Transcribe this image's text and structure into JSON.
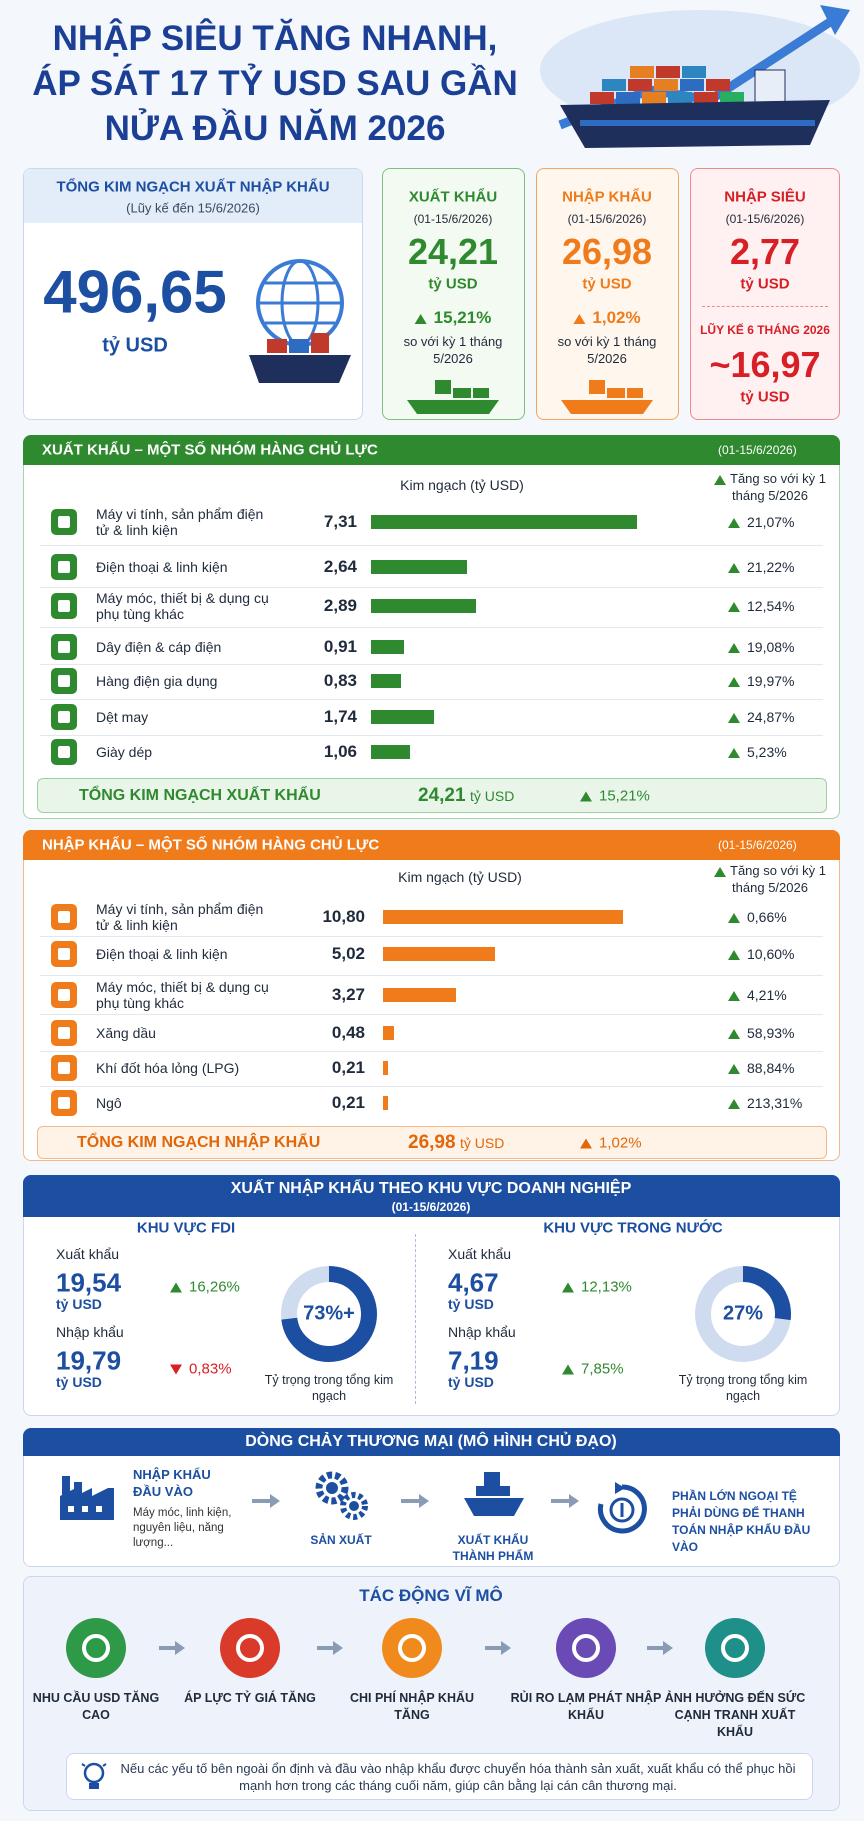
{
  "header": {
    "title_lines": [
      "NHẬP SIÊU TĂNG NHANH,",
      "ÁP SÁT 17 TỶ USD SAU GẦN",
      "NỬA ĐẦU NĂM 2026"
    ]
  },
  "summary": {
    "total": {
      "title": "TỔNG KIM NGẠCH XUẤT NHẬP KHẨU",
      "period": "(Lũy kế đến 15/6/2026)",
      "value": "496,65",
      "unit": "tỷ USD"
    },
    "export": {
      "title": "XUẤT KHẨU",
      "period": "(01-15/6/2026)",
      "value": "24,21",
      "unit": "tỷ USD",
      "change": "15,21%",
      "note": "so với kỳ 1 tháng 5/2026"
    },
    "import": {
      "title": "NHẬP KHẨU",
      "period": "(01-15/6/2026)",
      "value": "26,98",
      "unit": "tỷ USD",
      "change": "1,02%",
      "note": "so với kỳ 1 tháng 5/2026"
    },
    "deficit": {
      "title": "NHẬP SIÊU",
      "period": "(01-15/6/2026)",
      "value": "2,77",
      "unit": "tỷ USD",
      "cumulative_title": "LŨY KẾ 6 THÁNG 2026",
      "cumulative_value": "~16,97",
      "cumulative_unit": "tỷ USD"
    }
  },
  "chart_data": [
    {
      "type": "bar",
      "title": "XUẤT KHẨU – MỘT SỐ NHÓM HÀNG CHỦ LỰC",
      "period": "(01-15/6/2026)",
      "value_header": "Kim ngạch (tỷ USD)",
      "change_header": "Tăng so với kỳ 1 tháng 5/2026",
      "color": "#2f8a2f",
      "categories": [
        "Máy vi tính, sản phẩm điện tử & linh kiện",
        "Điện thoại & linh kiện",
        "Máy móc, thiết bị & dụng cụ phụ tùng khác",
        "Dây điện & cáp điện",
        "Hàng điện gia dụng",
        "Dệt may",
        "Giày dép"
      ],
      "values": [
        7.31,
        2.64,
        2.89,
        0.91,
        0.83,
        1.74,
        1.06
      ],
      "value_labels": [
        "7,31",
        "2,64",
        "2,89",
        "0,91",
        "0,83",
        "1,74",
        "1,06"
      ],
      "changes": [
        "21,07%",
        "21,22%",
        "12,54%",
        "19,08%",
        "19,97%",
        "24,87%",
        "5,23%"
      ],
      "total": {
        "label": "TỔNG KIM NGẠCH XUẤT KHẨU",
        "value": "24,21",
        "unit": "tỷ USD",
        "change": "15,21%"
      }
    },
    {
      "type": "bar",
      "title": "NHẬP KHẨU – MỘT SỐ NHÓM HÀNG CHỦ LỰC",
      "period": "(01-15/6/2026)",
      "value_header": "Kim ngạch (tỷ USD)",
      "change_header": "Tăng so với kỳ 1 tháng 5/2026",
      "color": "#f07b1a",
      "categories": [
        "Máy vi tính, sản phẩm điện tử & linh kiện",
        "Điện thoại & linh kiện",
        "Máy móc, thiết bị & dụng cụ phụ tùng khác",
        "Xăng dầu",
        "Khí đốt hóa lỏng (LPG)",
        "Ngô"
      ],
      "values": [
        10.8,
        5.02,
        3.27,
        0.48,
        0.21,
        0.21
      ],
      "value_labels": [
        "10,80",
        "5,02",
        "3,27",
        "0,48",
        "0,21",
        "0,21"
      ],
      "changes": [
        "0,66%",
        "10,60%",
        "4,21%",
        "58,93%",
        "88,84%",
        "213,31%"
      ],
      "total": {
        "label": "TỔNG KIM NGẠCH NHẬP KHẨU",
        "value": "26,98",
        "unit": "tỷ USD",
        "change": "1,02%"
      }
    }
  ],
  "enterprise": {
    "title": "XUẤT NHẬP KHẨU THEO KHU VỰC DOANH NGHIỆP",
    "period": "(01-15/6/2026)",
    "sectors": [
      {
        "name": "KHU VỰC FDI",
        "rows": [
          {
            "label": "Xuất khẩu",
            "value": "19,54",
            "unit": "tỷ USD",
            "change": "16,26%",
            "direction": "up"
          },
          {
            "label": "Nhập khẩu",
            "value": "19,79",
            "unit": "tỷ USD",
            "change": "0,83%",
            "direction": "down"
          }
        ],
        "share": 73,
        "share_label": "73%+",
        "share_note": "Tỷ trọng trong tổng kim ngạch"
      },
      {
        "name": "KHU VỰC TRONG NƯỚC",
        "rows": [
          {
            "label": "Xuất khẩu",
            "value": "4,67",
            "unit": "tỷ USD",
            "change": "12,13%",
            "direction": "up"
          },
          {
            "label": "Nhập khẩu",
            "value": "7,19",
            "unit": "tỷ USD",
            "change": "7,85%",
            "direction": "up"
          }
        ],
        "share": 27,
        "share_label": "27%",
        "share_note": "Tỷ trọng trong tổng kim ngạch"
      }
    ]
  },
  "flow": {
    "title": "DÒNG CHẢY THƯƠNG MẠI (MÔ HÌNH CHỦ ĐẠO)",
    "steps": [
      {
        "title": "NHẬP KHẨU ĐẦU VÀO",
        "note": "Máy móc, linh kiện, nguyên liệu, năng lượng..."
      },
      {
        "title": "SẢN XUẤT"
      },
      {
        "title": "XUẤT KHẨU THÀNH PHẨM"
      },
      {
        "title": "PHẦN LỚN NGOẠI TỆ PHẢI DÙNG ĐỂ THANH TOÁN NHẬP KHẨU ĐẦU VÀO"
      }
    ]
  },
  "macro": {
    "title": "TÁC ĐỘNG VĨ MÔ",
    "items": [
      "NHU CẦU USD TĂNG CAO",
      "ÁP LỰC TỶ GIÁ TĂNG",
      "CHI PHÍ NHẬP KHẨU TĂNG",
      "RỦI RO LẠM PHÁT NHẬP KHẨU",
      "ẢNH HƯỞNG ĐẾN SỨC CẠNH TRANH XUẤT KHẨU"
    ],
    "note": "Nếu các yếu tố bên ngoài ổn định và đầu vào nhập khẩu được chuyển hóa thành sản xuất, xuất khẩu có thể phục hồi mạnh hơn trong các tháng cuối năm, giúp cân bằng lại cán cân thương mại."
  }
}
